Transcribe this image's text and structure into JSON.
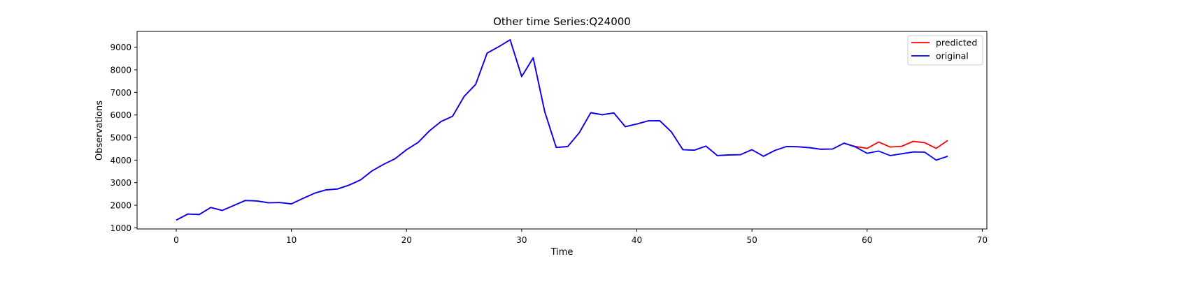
{
  "chart_data": {
    "type": "line",
    "title": "Other time Series:Q24000",
    "xlabel": "Time",
    "ylabel": "Observations",
    "xlim": [
      -3.4,
      70.4
    ],
    "ylim": [
      950,
      9700
    ],
    "xticks": [
      0,
      10,
      20,
      30,
      40,
      50,
      60,
      70
    ],
    "yticks": [
      1000,
      2000,
      3000,
      4000,
      5000,
      6000,
      7000,
      8000,
      9000
    ],
    "grid": false,
    "legend_position": "top-right",
    "series": [
      {
        "name": "predicted",
        "color": "#ff0000",
        "x": [
          0,
          1,
          2,
          3,
          4,
          5,
          6,
          7,
          8,
          9,
          10,
          11,
          12,
          13,
          14,
          15,
          16,
          17,
          18,
          19,
          20,
          21,
          22,
          23,
          24,
          25,
          26,
          27,
          28,
          29,
          30,
          31,
          32,
          33,
          34,
          35,
          36,
          37,
          38,
          39,
          40,
          41,
          42,
          43,
          44,
          45,
          46,
          47,
          48,
          49,
          50,
          51,
          52,
          53,
          54,
          55,
          56,
          57,
          58,
          59,
          60,
          61,
          62,
          63,
          64,
          65,
          66,
          67
        ],
        "values": [
          1340,
          1610,
          1590,
          1900,
          1770,
          1990,
          2210,
          2190,
          2110,
          2120,
          2060,
          2300,
          2530,
          2680,
          2720,
          2890,
          3120,
          3520,
          3810,
          4060,
          4460,
          4780,
          5300,
          5710,
          5940,
          6820,
          7350,
          8740,
          9020,
          9330,
          7700,
          8530,
          6150,
          4560,
          4600,
          5210,
          6100,
          6010,
          6090,
          5480,
          5600,
          5740,
          5740,
          5250,
          4460,
          4440,
          4620,
          4200,
          4230,
          4240,
          4460,
          4170,
          4430,
          4600,
          4590,
          4550,
          4480,
          4490,
          4750,
          4600,
          4520,
          4800,
          4580,
          4610,
          4830,
          4770,
          4520,
          4870
        ]
      },
      {
        "name": "original",
        "color": "#0000ff",
        "x": [
          0,
          1,
          2,
          3,
          4,
          5,
          6,
          7,
          8,
          9,
          10,
          11,
          12,
          13,
          14,
          15,
          16,
          17,
          18,
          19,
          20,
          21,
          22,
          23,
          24,
          25,
          26,
          27,
          28,
          29,
          30,
          31,
          32,
          33,
          34,
          35,
          36,
          37,
          38,
          39,
          40,
          41,
          42,
          43,
          44,
          45,
          46,
          47,
          48,
          49,
          50,
          51,
          52,
          53,
          54,
          55,
          56,
          57,
          58,
          59,
          60,
          61,
          62,
          63,
          64,
          65,
          66,
          67
        ],
        "values": [
          1340,
          1610,
          1590,
          1900,
          1770,
          1990,
          2210,
          2190,
          2110,
          2120,
          2060,
          2300,
          2530,
          2680,
          2720,
          2890,
          3120,
          3520,
          3810,
          4060,
          4460,
          4780,
          5300,
          5710,
          5940,
          6820,
          7350,
          8740,
          9020,
          9330,
          7700,
          8530,
          6150,
          4560,
          4600,
          5210,
          6100,
          6010,
          6090,
          5480,
          5600,
          5740,
          5740,
          5250,
          4460,
          4440,
          4620,
          4200,
          4230,
          4240,
          4460,
          4170,
          4430,
          4600,
          4590,
          4550,
          4480,
          4490,
          4750,
          4580,
          4300,
          4400,
          4200,
          4280,
          4360,
          4350,
          4000,
          4170
        ]
      }
    ]
  }
}
